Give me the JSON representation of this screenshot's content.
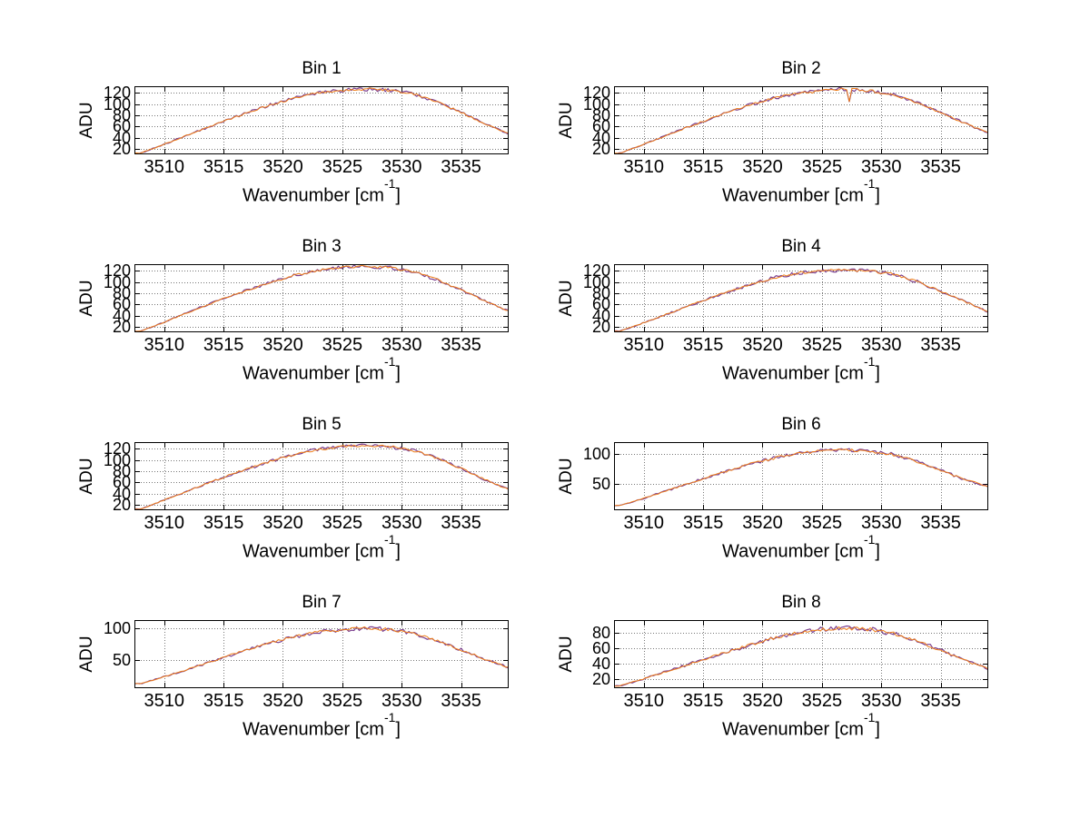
{
  "figure": {
    "background": "#ffffff"
  },
  "shared": {
    "ylabel": "ADU",
    "xlabel_prefix": "Wavenumber [cm",
    "xlabel_sup": "-1",
    "xlabel_suffix": "]",
    "x_ticks": [
      3510,
      3515,
      3520,
      3525,
      3530,
      3535
    ],
    "xlim": [
      3507.5,
      3539
    ],
    "grid_color": "#777777",
    "axis_color": "#000000",
    "series_colors": [
      "#7B3F8F",
      "#EE7D18"
    ],
    "noise_amp": 2.2
  },
  "chart_data": [
    {
      "type": "line",
      "title": "Bin 1",
      "xlabel": "Wavenumber [cm-1]",
      "ylabel": "ADU",
      "yticks": [
        20,
        40,
        60,
        80,
        100,
        120
      ],
      "ylim": [
        10,
        132
      ],
      "envelope": [
        [
          3508,
          12
        ],
        [
          3510,
          28
        ],
        [
          3513,
          53
        ],
        [
          3516,
          77
        ],
        [
          3519,
          99
        ],
        [
          3521,
          111
        ],
        [
          3523,
          120
        ],
        [
          3525,
          125
        ],
        [
          3527,
          127
        ],
        [
          3529,
          125
        ],
        [
          3531,
          118
        ],
        [
          3533,
          104
        ],
        [
          3535,
          85
        ],
        [
          3537,
          65
        ],
        [
          3539,
          47
        ]
      ]
    },
    {
      "type": "line",
      "title": "Bin 2",
      "xlabel": "Wavenumber [cm-1]",
      "ylabel": "ADU",
      "yticks": [
        20,
        40,
        60,
        80,
        100,
        120
      ],
      "ylim": [
        10,
        132
      ],
      "dip": [
        3527.2,
        104
      ],
      "envelope": [
        [
          3508,
          12
        ],
        [
          3510,
          28
        ],
        [
          3513,
          53
        ],
        [
          3516,
          77
        ],
        [
          3519,
          99
        ],
        [
          3521,
          111
        ],
        [
          3523,
          119
        ],
        [
          3525,
          124
        ],
        [
          3527,
          127
        ],
        [
          3529,
          124
        ],
        [
          3531,
          117
        ],
        [
          3533,
          103
        ],
        [
          3535,
          85
        ],
        [
          3537,
          66
        ],
        [
          3539,
          48
        ]
      ]
    },
    {
      "type": "line",
      "title": "Bin 3",
      "xlabel": "Wavenumber [cm-1]",
      "ylabel": "ADU",
      "yticks": [
        20,
        40,
        60,
        80,
        100,
        120
      ],
      "ylim": [
        10,
        132
      ],
      "envelope": [
        [
          3508,
          12
        ],
        [
          3510,
          28
        ],
        [
          3513,
          54
        ],
        [
          3516,
          78
        ],
        [
          3519,
          100
        ],
        [
          3521,
          112
        ],
        [
          3523,
          121
        ],
        [
          3525,
          126
        ],
        [
          3527,
          128
        ],
        [
          3529,
          126
        ],
        [
          3531,
          118
        ],
        [
          3533,
          104
        ],
        [
          3535,
          86
        ],
        [
          3537,
          66
        ],
        [
          3539,
          48
        ]
      ]
    },
    {
      "type": "line",
      "title": "Bin 4",
      "xlabel": "Wavenumber [cm-1]",
      "ylabel": "ADU",
      "yticks": [
        20,
        40,
        60,
        80,
        100,
        120
      ],
      "ylim": [
        10,
        132
      ],
      "envelope": [
        [
          3508,
          12
        ],
        [
          3510,
          27
        ],
        [
          3513,
          51
        ],
        [
          3516,
          75
        ],
        [
          3519,
          96
        ],
        [
          3521,
          108
        ],
        [
          3523,
          116
        ],
        [
          3525,
          120
        ],
        [
          3527,
          122
        ],
        [
          3529,
          120
        ],
        [
          3531,
          114
        ],
        [
          3533,
          101
        ],
        [
          3535,
          84
        ],
        [
          3537,
          65
        ],
        [
          3539,
          47
        ]
      ]
    },
    {
      "type": "line",
      "title": "Bin 5",
      "xlabel": "Wavenumber [cm-1]",
      "ylabel": "ADU",
      "yticks": [
        20,
        40,
        60,
        80,
        100,
        120
      ],
      "ylim": [
        10,
        132
      ],
      "envelope": [
        [
          3508,
          12
        ],
        [
          3510,
          28
        ],
        [
          3513,
          53
        ],
        [
          3516,
          77
        ],
        [
          3519,
          98
        ],
        [
          3521,
          110
        ],
        [
          3523,
          119
        ],
        [
          3525,
          124
        ],
        [
          3527,
          126
        ],
        [
          3529,
          124
        ],
        [
          3531,
          117
        ],
        [
          3533,
          103
        ],
        [
          3535,
          85
        ],
        [
          3537,
          65
        ],
        [
          3539,
          47
        ]
      ]
    },
    {
      "type": "line",
      "title": "Bin 6",
      "xlabel": "Wavenumber [cm-1]",
      "ylabel": "ADU",
      "yticks": [
        50,
        100
      ],
      "ylim": [
        5,
        120
      ],
      "envelope": [
        [
          3508,
          13
        ],
        [
          3510,
          25
        ],
        [
          3513,
          45
        ],
        [
          3516,
          65
        ],
        [
          3519,
          83
        ],
        [
          3521,
          93
        ],
        [
          3523,
          101
        ],
        [
          3525,
          105
        ],
        [
          3527,
          107
        ],
        [
          3529,
          105
        ],
        [
          3531,
          99
        ],
        [
          3533,
          87
        ],
        [
          3535,
          72
        ],
        [
          3537,
          57
        ],
        [
          3539,
          45
        ]
      ]
    },
    {
      "type": "line",
      "title": "Bin 7",
      "xlabel": "Wavenumber [cm-1]",
      "ylabel": "ADU",
      "yticks": [
        50,
        100
      ],
      "ylim": [
        5,
        113
      ],
      "envelope": [
        [
          3508,
          12
        ],
        [
          3510,
          23
        ],
        [
          3513,
          41
        ],
        [
          3516,
          60
        ],
        [
          3519,
          77
        ],
        [
          3521,
          87
        ],
        [
          3523,
          94
        ],
        [
          3525,
          98
        ],
        [
          3527,
          100
        ],
        [
          3529,
          98
        ],
        [
          3531,
          92
        ],
        [
          3533,
          80
        ],
        [
          3535,
          66
        ],
        [
          3537,
          51
        ],
        [
          3539,
          38
        ]
      ]
    },
    {
      "type": "line",
      "title": "Bin 8",
      "xlabel": "Wavenumber [cm-1]",
      "ylabel": "ADU",
      "yticks": [
        20,
        40,
        60,
        80
      ],
      "ylim": [
        8,
        96
      ],
      "envelope": [
        [
          3508,
          11
        ],
        [
          3510,
          20
        ],
        [
          3513,
          35
        ],
        [
          3516,
          50
        ],
        [
          3519,
          64
        ],
        [
          3521,
          73
        ],
        [
          3523,
          80
        ],
        [
          3525,
          84
        ],
        [
          3527,
          86
        ],
        [
          3529,
          84
        ],
        [
          3531,
          79
        ],
        [
          3533,
          69
        ],
        [
          3535,
          57
        ],
        [
          3537,
          44
        ],
        [
          3539,
          33
        ]
      ]
    }
  ]
}
